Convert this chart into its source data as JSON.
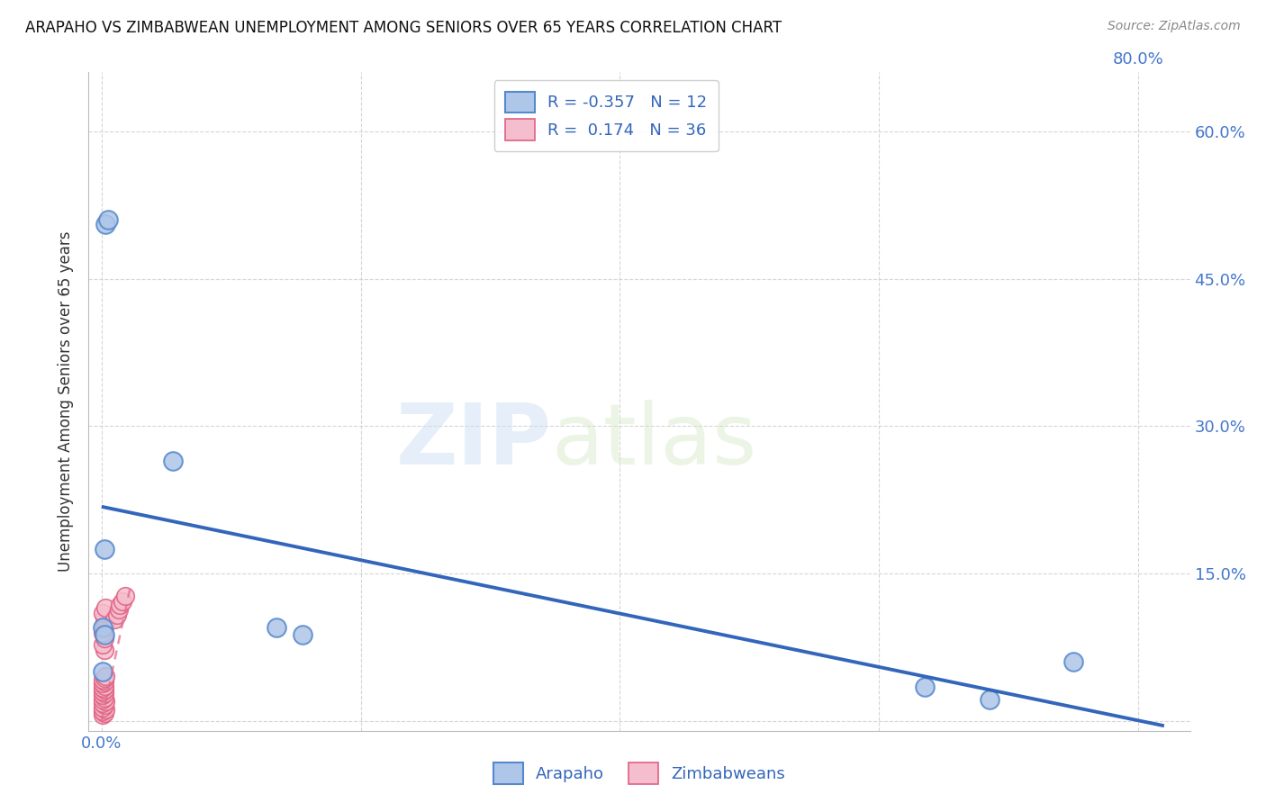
{
  "title": "ARAPAHO VS ZIMBABWEAN UNEMPLOYMENT AMONG SENIORS OVER 65 YEARS CORRELATION CHART",
  "source": "Source: ZipAtlas.com",
  "ylabel": "Unemployment Among Seniors over 65 years",
  "xlim": [
    -0.01,
    0.84
  ],
  "ylim": [
    -0.01,
    0.66
  ],
  "xticks": [
    0.0,
    0.2,
    0.4,
    0.6,
    0.8
  ],
  "yticks": [
    0.0,
    0.15,
    0.3,
    0.45,
    0.6
  ],
  "xtick_labels_left": [
    "0.0%",
    "",
    "",
    "",
    ""
  ],
  "xtick_labels_right": [
    "",
    "",
    "",
    "",
    "80.0%"
  ],
  "ytick_labels_right": [
    "",
    "15.0%",
    "30.0%",
    "45.0%",
    "60.0%"
  ],
  "watermark_zip": "ZIP",
  "watermark_atlas": "atlas",
  "legend_R1": "R = -0.357",
  "legend_N1": "N = 12",
  "legend_R2": "R =  0.174",
  "legend_N2": "N = 36",
  "arapaho_color": "#aec6e8",
  "zimbabwean_color": "#f5bece",
  "arapaho_edge": "#5588cc",
  "zimbabwean_edge": "#e06080",
  "trend_arapaho_color": "#3366bb",
  "trend_zimbabwean_color": "#dd7090",
  "arapaho_points_x": [
    0.003,
    0.005,
    0.055,
    0.002,
    0.001,
    0.135,
    0.155,
    0.002,
    0.635,
    0.685,
    0.75,
    0.001
  ],
  "arapaho_points_y": [
    0.505,
    0.51,
    0.265,
    0.175,
    0.095,
    0.095,
    0.088,
    0.088,
    0.035,
    0.022,
    0.06,
    0.05
  ],
  "zimbabwean_points_x": [
    0.001,
    0.002,
    0.001,
    0.003,
    0.001,
    0.002,
    0.001,
    0.003,
    0.001,
    0.002,
    0.001,
    0.002,
    0.001,
    0.002,
    0.001,
    0.002,
    0.001,
    0.002,
    0.001,
    0.002,
    0.003,
    0.002,
    0.001,
    0.002,
    0.001,
    0.002,
    0.003,
    0.002,
    0.001,
    0.003,
    0.01,
    0.012,
    0.013,
    0.014,
    0.016,
    0.018
  ],
  "zimbabwean_points_y": [
    0.006,
    0.008,
    0.01,
    0.012,
    0.014,
    0.016,
    0.018,
    0.02,
    0.022,
    0.024,
    0.026,
    0.028,
    0.03,
    0.032,
    0.034,
    0.036,
    0.038,
    0.04,
    0.042,
    0.044,
    0.046,
    0.072,
    0.078,
    0.084,
    0.09,
    0.096,
    0.1,
    0.105,
    0.11,
    0.115,
    0.103,
    0.108,
    0.113,
    0.118,
    0.122,
    0.127
  ],
  "arapaho_trend_x0": 0.0,
  "arapaho_trend_y0": 0.218,
  "arapaho_trend_x1": 0.82,
  "arapaho_trend_y1": -0.005,
  "zimbabwean_trend_x0": 0.0,
  "zimbabwean_trend_y0": 0.0,
  "zimbabwean_trend_x1": 0.022,
  "zimbabwean_trend_y1": 0.135
}
